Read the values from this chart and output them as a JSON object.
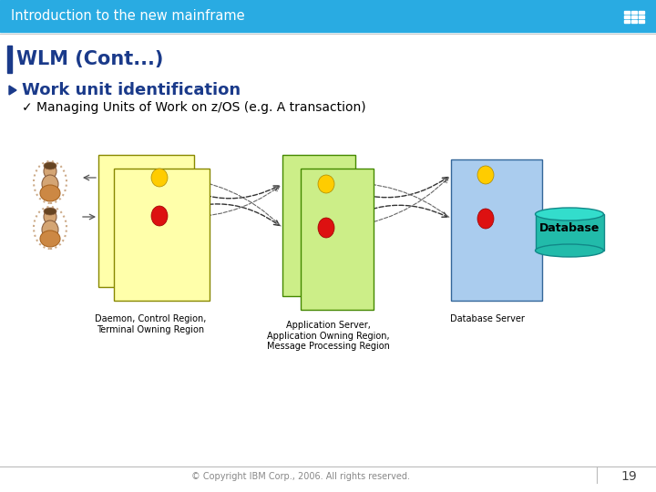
{
  "title_bar_text": "Introduction to the new mainframe",
  "title_bar_color": "#29ABE2",
  "title_bar_text_color": "#FFFFFF",
  "section_title": "WLM (Cont...)",
  "section_title_color": "#1A3A8A",
  "section_bar_color": "#1A3A8A",
  "bullet1_text": "Work unit identification",
  "bullet1_color": "#1A3A8A",
  "bullet2_text": " Managing Units of Work on z/OS (e.g. A transaction)",
  "bullet2_color": "#000000",
  "footer_text": "© Copyright IBM Corp., 2006. All rights reserved.",
  "footer_number": "19",
  "bg_color": "#FFFFFF",
  "diagram_label1": "Daemon, Control Region,\nTerminal Owning Region",
  "diagram_label2": "Application Server,\nApplication Owning Region,\nMessage Processing Region",
  "diagram_label3": "Database Server",
  "box1_color": "#FFFFAA",
  "box2_color": "#CCEE88",
  "box3_color": "#AACCEE",
  "dot_red_color": "#DD1111",
  "dot_yellow_color": "#FFCC00",
  "db_fill": "#22BBAA",
  "db_top": "#33DDCC",
  "db_text": "Database",
  "arrow_color": "#444444",
  "person_skin": "#D4A574",
  "person_hair": "#664422"
}
